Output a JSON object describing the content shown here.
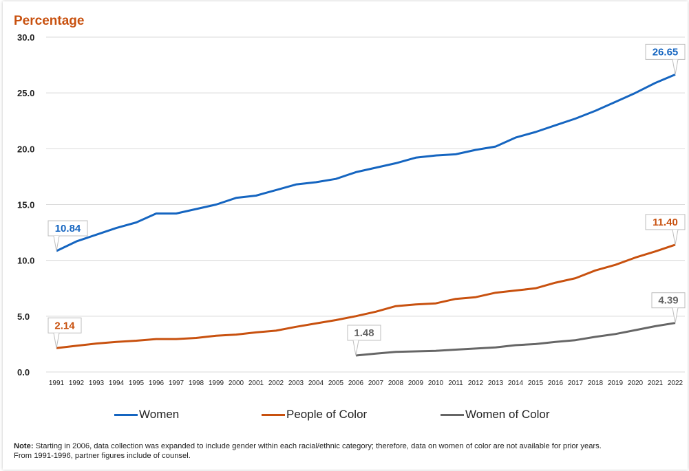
{
  "chart_data": {
    "type": "line",
    "ylabel": "Percentage",
    "ylim": [
      0,
      30
    ],
    "yticks": [
      "0.0",
      "5.0",
      "10.0",
      "15.0",
      "20.0",
      "25.0",
      "30.0"
    ],
    "categories": [
      "1991",
      "1992",
      "1993",
      "1994",
      "1995",
      "1996",
      "1997",
      "1998",
      "1999",
      "2000",
      "2001",
      "2002",
      "2003",
      "2004",
      "2005",
      "2006",
      "2007",
      "2008",
      "2009",
      "2010",
      "2011",
      "2012",
      "2013",
      "2014",
      "2015",
      "2016",
      "2017",
      "2018",
      "2019",
      "2020",
      "2021",
      "2022"
    ],
    "grid": true,
    "legend_position": "bottom",
    "series": [
      {
        "name": "Women",
        "color": "#1565c0",
        "values": [
          10.84,
          11.7,
          12.3,
          12.9,
          13.4,
          14.2,
          14.2,
          14.6,
          15.0,
          15.6,
          15.8,
          16.3,
          16.8,
          17.0,
          17.3,
          17.9,
          18.3,
          18.7,
          19.2,
          19.4,
          19.5,
          19.9,
          20.2,
          21.0,
          21.5,
          22.1,
          22.7,
          23.4,
          24.2,
          25.0,
          25.9,
          26.65
        ],
        "start_label": "10.84",
        "end_label": "26.65"
      },
      {
        "name": "People of Color",
        "color": "#c8510f",
        "values": [
          2.14,
          2.35,
          2.55,
          2.7,
          2.8,
          2.95,
          2.95,
          3.05,
          3.25,
          3.35,
          3.55,
          3.7,
          4.05,
          4.35,
          4.65,
          5.0,
          5.4,
          5.9,
          6.05,
          6.15,
          6.55,
          6.7,
          7.1,
          7.3,
          7.5,
          8.0,
          8.4,
          9.1,
          9.6,
          10.25,
          10.8,
          11.4
        ],
        "start_label": "2.14",
        "end_label": "11.40"
      },
      {
        "name": "Women of Color",
        "color": "#666666",
        "values": [
          null,
          null,
          null,
          null,
          null,
          null,
          null,
          null,
          null,
          null,
          null,
          null,
          null,
          null,
          null,
          1.48,
          1.65,
          1.8,
          1.85,
          1.9,
          2.0,
          2.1,
          2.2,
          2.4,
          2.5,
          2.7,
          2.85,
          3.15,
          3.4,
          3.75,
          4.1,
          4.39
        ],
        "start_label": "1.48",
        "end_label": "4.39"
      }
    ]
  },
  "note": {
    "bold": "Note:",
    "line1": " Starting in 2006, data collection was expanded to include gender within each racial/ethnic category; therefore, data on women of color are not available for prior years.",
    "line2": "From 1991-1996, partner figures include of counsel."
  }
}
